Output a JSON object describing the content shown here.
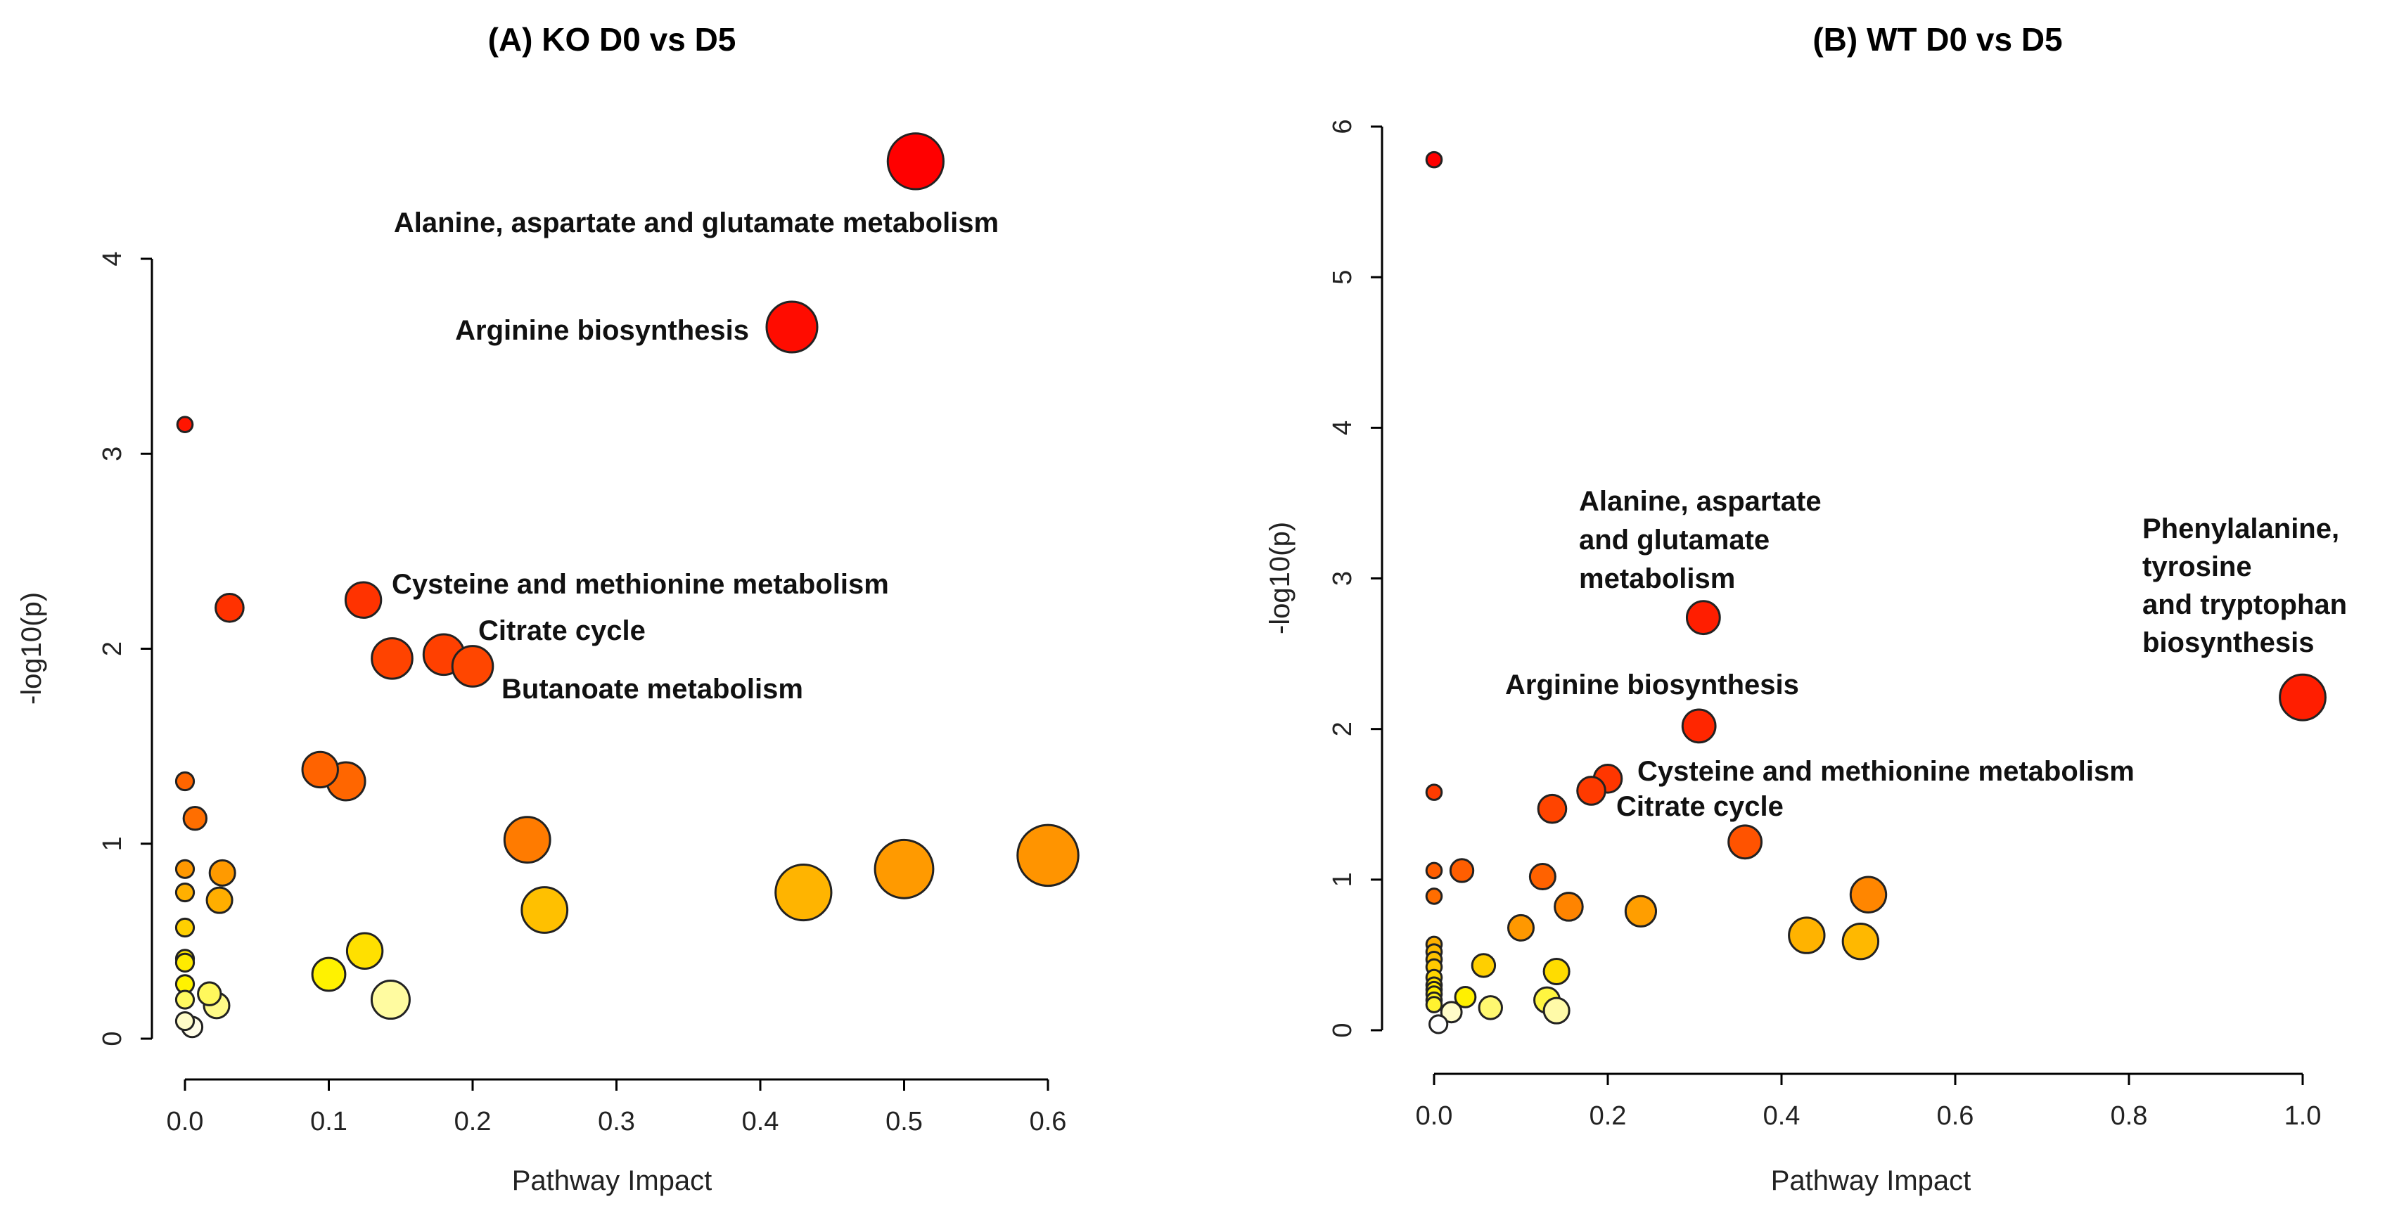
{
  "chart_data": [
    {
      "type": "scatter",
      "title": "(A) KO D0 vs D5",
      "xlabel": "Pathway Impact",
      "ylabel": "-log10(p)",
      "xticks": [
        "0.0",
        "0.1",
        "0.2",
        "0.3",
        "0.4",
        "0.5",
        "0.6"
      ],
      "yticks": [
        "0",
        "1",
        "2",
        "3",
        "4"
      ],
      "points": [
        {
          "x": 0.508,
          "y": 4.5,
          "size": 2.2,
          "color": "#ff0000",
          "label": "Alanine, aspartate and glutamate metabolism"
        },
        {
          "x": 0.422,
          "y": 3.65,
          "size": 2.0,
          "color": "#ff0c00",
          "label": "Arginine biosynthesis"
        },
        {
          "x": 0.0,
          "y": 3.15,
          "size": 0.6,
          "color": "#ff1500",
          "label": ""
        },
        {
          "x": 0.031,
          "y": 2.21,
          "size": 1.1,
          "color": "#ff3200",
          "label": ""
        },
        {
          "x": 0.124,
          "y": 2.25,
          "size": 1.4,
          "color": "#ff3300",
          "label": "Cysteine and methionine metabolism"
        },
        {
          "x": 0.144,
          "y": 1.95,
          "size": 1.6,
          "color": "#ff4300",
          "label": ""
        },
        {
          "x": 0.18,
          "y": 1.97,
          "size": 1.6,
          "color": "#ff4000",
          "label": "Citrate cycle"
        },
        {
          "x": 0.2,
          "y": 1.91,
          "size": 1.6,
          "color": "#ff4600",
          "label": "Butanoate metabolism"
        },
        {
          "x": 0.094,
          "y": 1.38,
          "size": 1.4,
          "color": "#ff6300",
          "label": ""
        },
        {
          "x": 0.112,
          "y": 1.32,
          "size": 1.5,
          "color": "#ff6600",
          "label": ""
        },
        {
          "x": 0.0,
          "y": 1.32,
          "size": 0.7,
          "color": "#ff6500",
          "label": ""
        },
        {
          "x": 0.007,
          "y": 1.13,
          "size": 0.9,
          "color": "#ff6e00",
          "label": ""
        },
        {
          "x": 0.238,
          "y": 1.02,
          "size": 1.8,
          "color": "#ff7b00",
          "label": ""
        },
        {
          "x": 0.0,
          "y": 0.87,
          "size": 0.7,
          "color": "#ff9800",
          "label": ""
        },
        {
          "x": 0.026,
          "y": 0.85,
          "size": 1.0,
          "color": "#ff9a00",
          "label": ""
        },
        {
          "x": 0.6,
          "y": 0.94,
          "size": 2.4,
          "color": "#ff9400",
          "label": ""
        },
        {
          "x": 0.5,
          "y": 0.87,
          "size": 2.3,
          "color": "#ff9a00",
          "label": ""
        },
        {
          "x": 0.0,
          "y": 0.75,
          "size": 0.7,
          "color": "#ffb000",
          "label": ""
        },
        {
          "x": 0.024,
          "y": 0.71,
          "size": 1.0,
          "color": "#ffae00",
          "label": ""
        },
        {
          "x": 0.43,
          "y": 0.75,
          "size": 2.2,
          "color": "#ffb400",
          "label": ""
        },
        {
          "x": 0.25,
          "y": 0.66,
          "size": 1.8,
          "color": "#ffc000",
          "label": ""
        },
        {
          "x": 0.0,
          "y": 0.57,
          "size": 0.7,
          "color": "#ffcf00",
          "label": ""
        },
        {
          "x": 0.125,
          "y": 0.45,
          "size": 1.4,
          "color": "#ffe000",
          "label": ""
        },
        {
          "x": 0.0,
          "y": 0.41,
          "size": 0.7,
          "color": "#ffe600",
          "label": ""
        },
        {
          "x": 0.0,
          "y": 0.39,
          "size": 0.7,
          "color": "#ffeb00",
          "label": ""
        },
        {
          "x": 0.1,
          "y": 0.33,
          "size": 1.3,
          "color": "#fff200",
          "label": ""
        },
        {
          "x": 0.0,
          "y": 0.28,
          "size": 0.7,
          "color": "#fff300",
          "label": ""
        },
        {
          "x": 0.017,
          "y": 0.23,
          "size": 0.9,
          "color": "#fff85c",
          "label": ""
        },
        {
          "x": 0.0,
          "y": 0.2,
          "size": 0.7,
          "color": "#fff960",
          "label": ""
        },
        {
          "x": 0.022,
          "y": 0.17,
          "size": 1.0,
          "color": "#fffa88",
          "label": ""
        },
        {
          "x": 0.143,
          "y": 0.2,
          "size": 1.5,
          "color": "#fffba0",
          "label": ""
        },
        {
          "x": 0.0,
          "y": 0.09,
          "size": 0.7,
          "color": "#fffcc8",
          "label": ""
        },
        {
          "x": 0.005,
          "y": 0.06,
          "size": 0.8,
          "color": "#fffde8",
          "label": ""
        }
      ]
    },
    {
      "type": "scatter",
      "title": "(B) WT D0 vs D5",
      "xlabel": "Pathway Impact",
      "ylabel": "-log10(p)",
      "xticks": [
        "0.0",
        "0.2",
        "0.4",
        "0.6",
        "0.8",
        "1.0"
      ],
      "yticks": [
        "0",
        "1",
        "2",
        "3",
        "4",
        "5",
        "6"
      ],
      "points": [
        {
          "x": 0.0,
          "y": 5.78,
          "size": 0.6,
          "color": "#ff0000",
          "label": ""
        },
        {
          "x": 0.31,
          "y": 2.74,
          "size": 1.3,
          "color": "#ff1e00",
          "label": "Alanine, aspartate and glutamate metabolism"
        },
        {
          "x": 1.0,
          "y": 2.21,
          "size": 1.8,
          "color": "#ff1e00",
          "label": "Phenylalanine, tyrosine and tryptophan biosynthesis"
        },
        {
          "x": 0.305,
          "y": 2.02,
          "size": 1.3,
          "color": "#ff2600",
          "label": "Arginine biosynthesis"
        },
        {
          "x": 0.2,
          "y": 1.67,
          "size": 1.1,
          "color": "#ff3600",
          "label": "Cysteine and methionine metabolism"
        },
        {
          "x": 0.181,
          "y": 1.59,
          "size": 1.1,
          "color": "#ff3a00",
          "label": "Citrate cycle"
        },
        {
          "x": 0.0,
          "y": 1.58,
          "size": 0.6,
          "color": "#ff3c00",
          "label": ""
        },
        {
          "x": 0.136,
          "y": 1.47,
          "size": 1.1,
          "color": "#ff4400",
          "label": ""
        },
        {
          "x": 0.358,
          "y": 1.25,
          "size": 1.3,
          "color": "#ff5300",
          "label": ""
        },
        {
          "x": 0.0,
          "y": 1.06,
          "size": 0.6,
          "color": "#ff5e00",
          "label": ""
        },
        {
          "x": 0.032,
          "y": 1.06,
          "size": 0.9,
          "color": "#ff5e00",
          "label": ""
        },
        {
          "x": 0.125,
          "y": 1.02,
          "size": 1.0,
          "color": "#ff6200",
          "label": ""
        },
        {
          "x": 0.0,
          "y": 0.89,
          "size": 0.6,
          "color": "#ff6d00",
          "label": ""
        },
        {
          "x": 0.5,
          "y": 0.9,
          "size": 1.4,
          "color": "#ff8600",
          "label": ""
        },
        {
          "x": 0.155,
          "y": 0.82,
          "size": 1.1,
          "color": "#ff8400",
          "label": ""
        },
        {
          "x": 0.238,
          "y": 0.79,
          "size": 1.2,
          "color": "#ff9e00",
          "label": ""
        },
        {
          "x": 0.1,
          "y": 0.68,
          "size": 1.0,
          "color": "#ff9800",
          "label": ""
        },
        {
          "x": 0.429,
          "y": 0.63,
          "size": 1.4,
          "color": "#ffb300",
          "label": ""
        },
        {
          "x": 0.491,
          "y": 0.59,
          "size": 1.4,
          "color": "#ffb800",
          "label": ""
        },
        {
          "x": 0.0,
          "y": 0.57,
          "size": 0.6,
          "color": "#ffb000",
          "label": ""
        },
        {
          "x": 0.0,
          "y": 0.52,
          "size": 0.6,
          "color": "#ffbc00",
          "label": ""
        },
        {
          "x": 0.0,
          "y": 0.47,
          "size": 0.6,
          "color": "#ffc200",
          "label": ""
        },
        {
          "x": 0.057,
          "y": 0.43,
          "size": 0.9,
          "color": "#ffcf00",
          "label": ""
        },
        {
          "x": 0.0,
          "y": 0.42,
          "size": 0.6,
          "color": "#ffca00",
          "label": ""
        },
        {
          "x": 0.141,
          "y": 0.39,
          "size": 1.0,
          "color": "#ffdc00",
          "label": ""
        },
        {
          "x": 0.0,
          "y": 0.35,
          "size": 0.6,
          "color": "#ffd600",
          "label": ""
        },
        {
          "x": 0.0,
          "y": 0.3,
          "size": 0.6,
          "color": "#ffdf00",
          "label": ""
        },
        {
          "x": 0.0,
          "y": 0.27,
          "size": 0.6,
          "color": "#ffe500",
          "label": ""
        },
        {
          "x": 0.0,
          "y": 0.24,
          "size": 0.6,
          "color": "#ffeb00",
          "label": ""
        },
        {
          "x": 0.036,
          "y": 0.22,
          "size": 0.8,
          "color": "#fff000",
          "label": ""
        },
        {
          "x": 0.0,
          "y": 0.2,
          "size": 0.6,
          "color": "#ffef20",
          "label": ""
        },
        {
          "x": 0.13,
          "y": 0.2,
          "size": 1.0,
          "color": "#fff540",
          "label": ""
        },
        {
          "x": 0.0,
          "y": 0.17,
          "size": 0.6,
          "color": "#fff230",
          "label": ""
        },
        {
          "x": 0.065,
          "y": 0.15,
          "size": 0.9,
          "color": "#fff870",
          "label": ""
        },
        {
          "x": 0.141,
          "y": 0.13,
          "size": 1.0,
          "color": "#fffaa8",
          "label": ""
        },
        {
          "x": 0.02,
          "y": 0.12,
          "size": 0.8,
          "color": "#fffcc8",
          "label": ""
        },
        {
          "x": 0.005,
          "y": 0.04,
          "size": 0.7,
          "color": "#ffffff",
          "label": ""
        }
      ]
    }
  ],
  "annotations": {
    "a": {
      "alanine": "Alanine, aspartate and glutamate metabolism",
      "arginine": "Arginine biosynthesis",
      "cysteine": "Cysteine and methionine metabolism",
      "citrate": "Citrate cycle",
      "butanoate": "Butanoate metabolism"
    },
    "b": {
      "alanine_l1": "Alanine, aspartate",
      "alanine_l2": "and glutamate",
      "alanine_l3": "metabolism",
      "phenyl_l1": "Phenylalanine,",
      "phenyl_l2": "tyrosine",
      "phenyl_l3": "and tryptophan",
      "phenyl_l4": "biosynthesis",
      "arginine": "Arginine biosynthesis",
      "cysteine": "Cysteine and methionine metabolism",
      "citrate": "Citrate cycle"
    }
  }
}
